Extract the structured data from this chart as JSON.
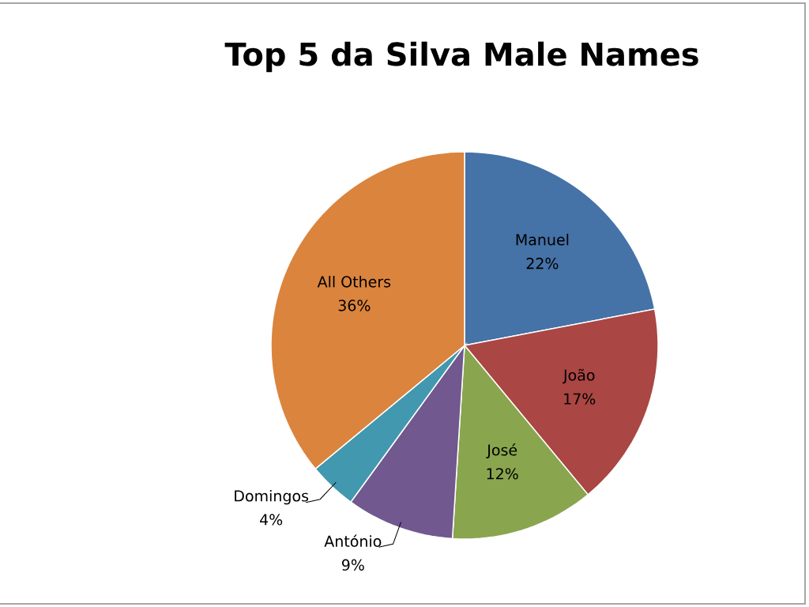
{
  "chart_data": {
    "type": "pie",
    "title": "Top 5 da Silva Male Names",
    "categories": [
      "Manuel",
      "João",
      "José",
      "António",
      "Domingos",
      "All Others"
    ],
    "values": [
      22,
      17,
      12,
      9,
      4,
      36
    ],
    "value_labels": [
      "22%",
      "17%",
      "12%",
      "9%",
      "4%",
      "36%"
    ],
    "colors": [
      "#4572a7",
      "#aa4643",
      "#89a54e",
      "#71588f",
      "#4198af",
      "#db843d"
    ],
    "legend": false
  }
}
